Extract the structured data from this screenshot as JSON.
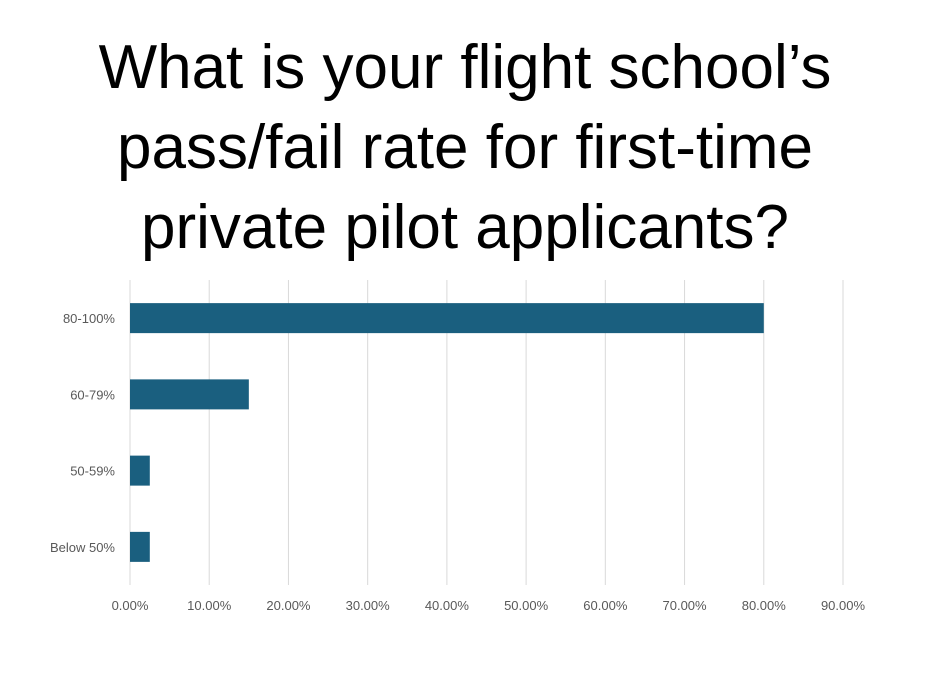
{
  "slide": {
    "title": "What is your flight school’s\npass/fail rate for first-time\nprivate pilot applicants?"
  },
  "chart_data": {
    "type": "bar",
    "orientation": "horizontal",
    "title": "What is your flight school’s pass/fail rate for first-time private pilot applicants?",
    "categories": [
      "80-100%",
      "60-79%",
      "50-59%",
      "Below 50%"
    ],
    "values": [
      0.8,
      0.15,
      0.025,
      0.025
    ],
    "xlim": [
      0,
      0.9
    ],
    "x_ticks": [
      0,
      0.1,
      0.2,
      0.3,
      0.4,
      0.5,
      0.6,
      0.7,
      0.8,
      0.9
    ],
    "x_tick_labels": [
      "0.00%",
      "10.00%",
      "20.00%",
      "30.00%",
      "40.00%",
      "50.00%",
      "60.00%",
      "70.00%",
      "80.00%",
      "90.00%"
    ],
    "xlabel": "",
    "ylabel": "",
    "grid": "vertical",
    "legend": "none",
    "bar_color": "#1a5f7f",
    "grid_color": "#d9d9d9"
  }
}
